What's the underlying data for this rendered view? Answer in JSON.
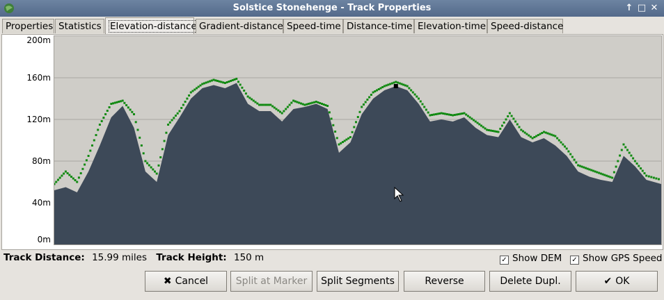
{
  "window": {
    "title": "Solstice Stonehenge - Track Properties",
    "controls": [
      "↑",
      "□",
      "✕"
    ]
  },
  "tabs": [
    {
      "label": "Properties"
    },
    {
      "label": "Statistics"
    },
    {
      "label": "Elevation-distance",
      "active": true
    },
    {
      "label": "Gradient-distance"
    },
    {
      "label": "Speed-time"
    },
    {
      "label": "Distance-time"
    },
    {
      "label": "Elevation-time"
    },
    {
      "label": "Speed-distance"
    }
  ],
  "chart_data": {
    "type": "area",
    "y_ticks": [
      "200m",
      "160m",
      "120m",
      "80m",
      "40m",
      "0m"
    ],
    "ylim": [
      0,
      200
    ],
    "xlim": [
      0,
      15.99
    ],
    "grid": true,
    "colors": {
      "elevation_fill": "#3d4958",
      "dem_points": "#138a13",
      "plot_bg": "#cfcdc8",
      "marker": "#000000"
    },
    "x": [
      0,
      0.3,
      0.6,
      0.9,
      1.2,
      1.5,
      1.8,
      2.1,
      2.4,
      2.7,
      3.0,
      3.3,
      3.6,
      3.9,
      4.2,
      4.5,
      4.8,
      5.1,
      5.4,
      5.7,
      6.0,
      6.3,
      6.6,
      6.9,
      7.2,
      7.5,
      7.8,
      8.1,
      8.4,
      8.7,
      9.0,
      9.3,
      9.6,
      9.9,
      10.2,
      10.5,
      10.8,
      11.1,
      11.4,
      11.7,
      12.0,
      12.3,
      12.6,
      12.9,
      13.2,
      13.5,
      13.8,
      14.1,
      14.4,
      14.7,
      15.0,
      15.3,
      15.6,
      15.99
    ],
    "elevation": [
      52,
      55,
      50,
      70,
      95,
      122,
      133,
      112,
      70,
      60,
      105,
      122,
      140,
      150,
      153,
      150,
      155,
      135,
      128,
      128,
      118,
      130,
      132,
      135,
      130,
      88,
      98,
      125,
      140,
      148,
      152,
      148,
      135,
      118,
      120,
      118,
      122,
      112,
      105,
      103,
      120,
      103,
      98,
      102,
      95,
      85,
      70,
      65,
      62,
      60,
      85,
      75,
      62,
      58
    ],
    "dem": [
      58,
      70,
      60,
      85,
      115,
      135,
      138,
      125,
      80,
      68,
      115,
      128,
      146,
      154,
      158,
      155,
      159,
      142,
      134,
      134,
      126,
      138,
      134,
      137,
      133,
      96,
      103,
      132,
      146,
      152,
      156,
      152,
      140,
      124,
      126,
      124,
      126,
      118,
      110,
      108,
      126,
      110,
      102,
      108,
      104,
      92,
      76,
      72,
      68,
      64,
      96,
      80,
      66,
      62
    ],
    "marker": {
      "x": 9.0,
      "y": 152
    }
  },
  "info": {
    "distance_label": "Track Distance:",
    "distance_value": "15.99 miles",
    "height_label": "Track Height:",
    "height_value": "150 m"
  },
  "checkboxes": {
    "show_dem": {
      "label": "Show DEM",
      "checked": true
    },
    "show_gps_speed": {
      "label": "Show GPS Speed",
      "checked": true
    }
  },
  "buttons": {
    "cancel": "Cancel",
    "split_at_marker": "Split at Marker",
    "split_segments": "Split Segments",
    "reverse": "Reverse",
    "delete_dupl": "Delete Dupl.",
    "ok": "OK"
  },
  "icons": {
    "cancel": "✖",
    "ok": "✔",
    "check": "✓"
  }
}
